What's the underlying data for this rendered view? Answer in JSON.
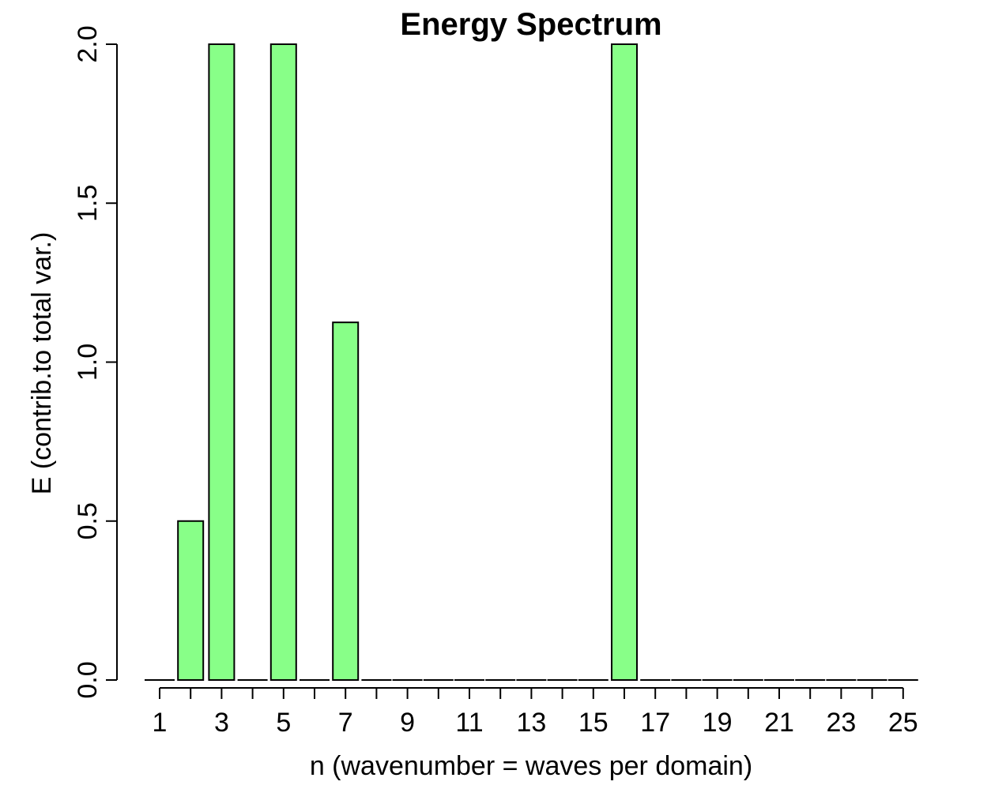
{
  "chart_data": {
    "type": "bar",
    "title": "Energy Spectrum",
    "xlabel": "n (wavenumber = waves per domain)",
    "ylabel": "E (contrib.to total var.)",
    "categories": [
      1,
      2,
      3,
      4,
      5,
      6,
      7,
      8,
      9,
      10,
      11,
      12,
      13,
      14,
      15,
      16,
      17,
      18,
      19,
      20,
      21,
      22,
      23,
      24,
      25
    ],
    "values": [
      0,
      0.5,
      2,
      0,
      2,
      0,
      1.125,
      0,
      0,
      0,
      0,
      0,
      0,
      0,
      0,
      2,
      0,
      0,
      0,
      0,
      0,
      0,
      0,
      0,
      0
    ],
    "ylim": [
      0,
      2
    ],
    "yticks": [
      "0.0",
      "0.5",
      "1.0",
      "1.5",
      "2.0"
    ],
    "xticks_labeled": [
      "1",
      "3",
      "5",
      "7",
      "9",
      "11",
      "13",
      "15",
      "17",
      "19",
      "21",
      "23",
      "25"
    ],
    "bar_color": "#88ff88",
    "bar_edge_color": "#000000",
    "grid": false,
    "legend": "none"
  }
}
